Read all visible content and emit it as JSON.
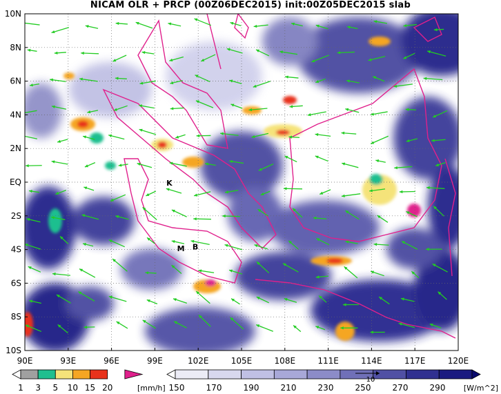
{
  "title": "NICAM OLR + PRCP (00Z06DEC2015) init:00Z05DEC2015 slab",
  "map": {
    "lon_range": [
      90,
      120
    ],
    "lat_range": [
      -10,
      10
    ],
    "x_ticks": [
      "90E",
      "93E",
      "96E",
      "99E",
      "102E",
      "105E",
      "108E",
      "111E",
      "114E",
      "117E",
      "120E"
    ],
    "y_ticks": [
      "10N",
      "8N",
      "6N",
      "4N",
      "2N",
      "EQ",
      "2S",
      "4S",
      "6S",
      "8S",
      "10S"
    ],
    "grid": "dotted",
    "vector_color": "#22cc22",
    "coastline_color": "#e0208c",
    "markers": [
      {
        "label": "K",
        "lon": 100.0,
        "lat": -0.2
      },
      {
        "label": "M",
        "lon": 100.8,
        "lat": -4.1
      },
      {
        "label": "B",
        "lon": 101.8,
        "lat": -4.0
      }
    ],
    "vector_reference": "10"
  },
  "precip_colorbar": {
    "labels": [
      "1",
      "3",
      "5",
      "10",
      "15",
      "20"
    ],
    "unit": "[mm/h]",
    "colors": [
      "#ffffff",
      "#a0a0a0",
      "#1fbf8f",
      "#f5e37a",
      "#f5a623",
      "#e8321c",
      "#e0208c"
    ]
  },
  "olr_colorbar": {
    "labels": [
      "150",
      "170",
      "190",
      "210",
      "230",
      "250",
      "270",
      "290"
    ],
    "unit": "[W/m^2]",
    "colors": [
      "#ffffff",
      "#ececf6",
      "#d8d8ee",
      "#c0c0e4",
      "#a8a8d8",
      "#8c8cc8",
      "#7070b8",
      "#5050a4",
      "#303090",
      "#1a1a80",
      "#0a0a6e"
    ]
  }
}
